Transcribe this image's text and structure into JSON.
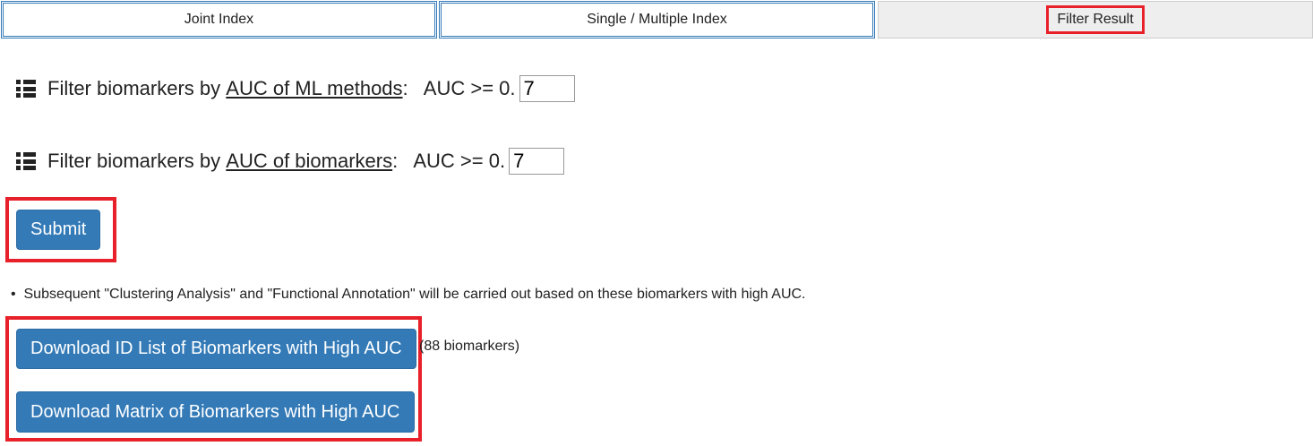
{
  "tabs": [
    {
      "label": "Joint Index"
    },
    {
      "label": "Single / Multiple Index"
    },
    {
      "label": "Filter Result"
    }
  ],
  "filters": [
    {
      "prefix": "Filter biomarkers by ",
      "link": "AUC of ML methods",
      "suffix": ":   AUC >= 0.",
      "value": "7"
    },
    {
      "prefix": "Filter biomarkers by ",
      "link": "AUC of biomarkers",
      "suffix": ":   AUC >= 0.",
      "value": "7"
    }
  ],
  "submit_label": "Submit",
  "note": "Subsequent \"Clustering Analysis\" and \"Functional Annotation\" will be carried out based on these biomarkers with high AUC.",
  "download_id_label": "Download ID List of Biomarkers with High AUC",
  "biomarker_count": "(88 biomarkers)",
  "download_matrix_label": "Download Matrix of Biomarkers with High AUC",
  "colors": {
    "primary": "#337ab7",
    "highlight": "#e8202a"
  }
}
